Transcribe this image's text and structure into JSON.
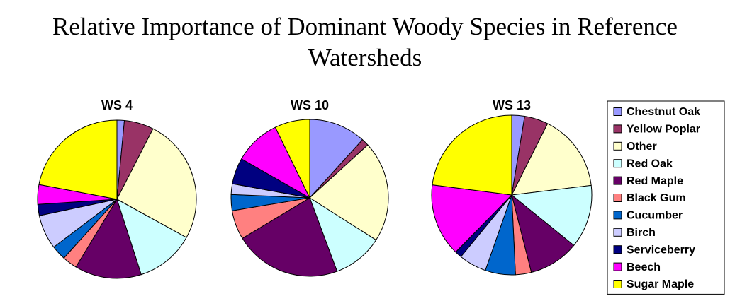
{
  "title": "Relative Importance of Dominant Woody Species in Reference Watersheds",
  "chart_data": [
    {
      "type": "pie",
      "title": "WS 4",
      "categories": [
        "Chestnut Oak",
        "Yellow Poplar",
        "Other",
        "Red Oak",
        "Red Maple",
        "Black Gum",
        "Cucumber",
        "Birch",
        "Serviceberry",
        "Beech",
        "Sugar Maple"
      ],
      "colors": [
        "#9999ff",
        "#993366",
        "#ffffcc",
        "#ccffff",
        "#660066",
        "#ff8080",
        "#0066cc",
        "#ccccff",
        "#000080",
        "#ff00ff",
        "#ffff00"
      ],
      "values": [
        1.5,
        6,
        25.5,
        12,
        13.6,
        3,
        3,
        7,
        2.3,
        4,
        22
      ]
    },
    {
      "type": "pie",
      "title": "WS 10",
      "categories": [
        "Chestnut Oak",
        "Yellow Poplar",
        "Other",
        "Red Oak",
        "Red Maple",
        "Black Gum",
        "Cucumber",
        "Birch",
        "Serviceberry",
        "Beech",
        "Sugar Maple"
      ],
      "colors": [
        "#9999ff",
        "#993366",
        "#ffffcc",
        "#ccffff",
        "#660066",
        "#ff8080",
        "#0066cc",
        "#ccccff",
        "#000080",
        "#ff00ff",
        "#ffff00"
      ],
      "values": [
        11.7,
        1.5,
        20.8,
        10.3,
        22,
        6,
        3.3,
        2.2,
        5.4,
        9.5,
        7.2
      ]
    },
    {
      "type": "pie",
      "title": "WS 13",
      "categories": [
        "Chestnut Oak",
        "Yellow Poplar",
        "Other",
        "Red Oak",
        "Red Maple",
        "Black Gum",
        "Cucumber",
        "Birch",
        "Serviceberry",
        "Beech",
        "Sugar Maple"
      ],
      "colors": [
        "#9999ff",
        "#993366",
        "#ffffcc",
        "#ccffff",
        "#660066",
        "#ff8080",
        "#0066cc",
        "#ccccff",
        "#000080",
        "#ff00ff",
        "#ffff00"
      ],
      "values": [
        2.6,
        4.8,
        15.7,
        12.8,
        10.2,
        3.2,
        6.1,
        5.6,
        1.4,
        14.7,
        23
      ]
    }
  ]
}
